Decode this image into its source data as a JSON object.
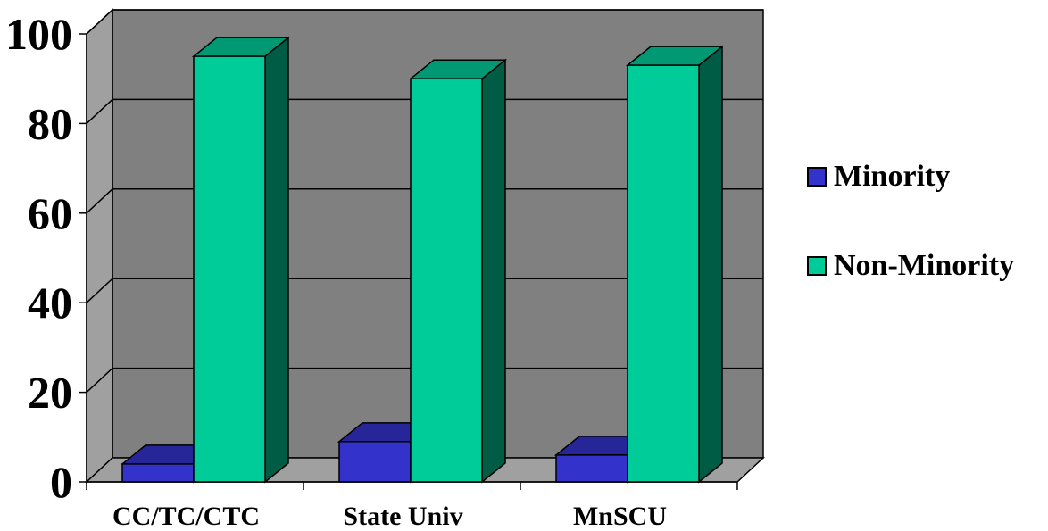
{
  "chart_data": {
    "type": "bar",
    "categories": [
      "CC/TC/CTC",
      "State Univ",
      "MnSCU"
    ],
    "series": [
      {
        "name": "Minority",
        "values": [
          4,
          9,
          6
        ],
        "color": "#3333cc"
      },
      {
        "name": "Non-Minority",
        "values": [
          95,
          90,
          93
        ],
        "color": "#00cc99"
      }
    ],
    "ylim": [
      0,
      100
    ],
    "yticks": [
      0,
      20,
      40,
      60,
      80,
      100
    ],
    "grid": true,
    "three_d": true,
    "plot_background": "#808080",
    "legend_position": "right"
  },
  "legend": {
    "items": [
      {
        "label": "Minority",
        "color": "#3333cc"
      },
      {
        "label": "Non-Minority",
        "color": "#00cc99"
      }
    ]
  }
}
